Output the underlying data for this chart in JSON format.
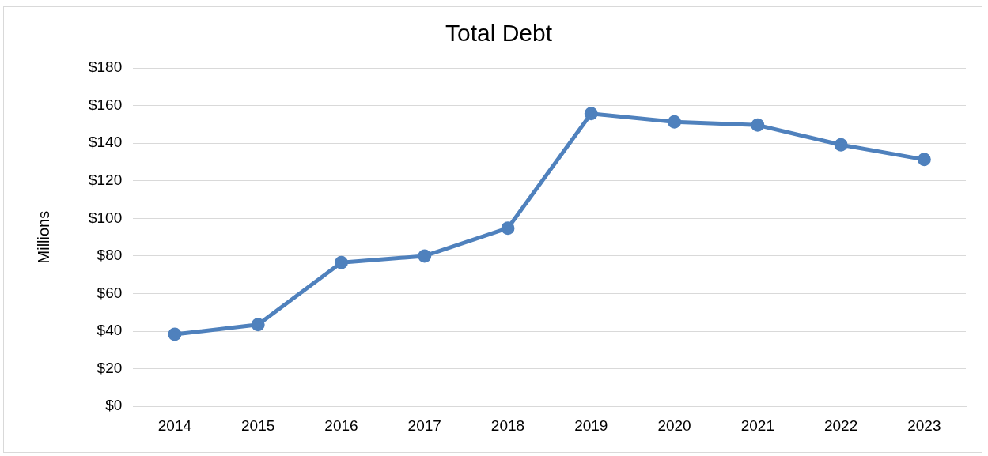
{
  "chart_data": {
    "type": "line",
    "title": "Total Debt",
    "ylabel": "Millions",
    "categories": [
      "2014",
      "2015",
      "2016",
      "2017",
      "2018",
      "2019",
      "2020",
      "2021",
      "2022",
      "2023"
    ],
    "series": [
      {
        "color": "#4f81bd",
        "values": [
          38.3,
          43.5,
          76.5,
          80,
          94.8,
          155.7,
          151.3,
          149.6,
          139.1,
          131.3
        ]
      }
    ],
    "ylim": [
      0,
      180
    ],
    "yticks": [
      {
        "value": 0,
        "label": "$0"
      },
      {
        "value": 20,
        "label": "$20"
      },
      {
        "value": 40,
        "label": "$40"
      },
      {
        "value": 60,
        "label": "$60"
      },
      {
        "value": 80,
        "label": "$80"
      },
      {
        "value": 100,
        "label": "$100"
      },
      {
        "value": 120,
        "label": "$120"
      },
      {
        "value": 140,
        "label": "$140"
      },
      {
        "value": 160,
        "label": "$160"
      },
      {
        "value": 180,
        "label": "$180"
      }
    ],
    "grid": "y",
    "legend": false,
    "marker": "circle",
    "line_style": "solid"
  }
}
